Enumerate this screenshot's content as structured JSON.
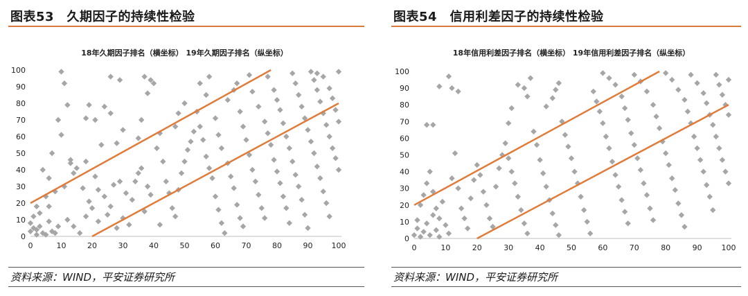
{
  "panels": [
    {
      "figure_title": "图表53　久期因子的持续性检验",
      "source": "资料来源：WIND，平安证券研究所"
    },
    {
      "figure_title": "图表54　信用利差因子的持续性检验",
      "source": "资料来源：WIND，平安证券研究所"
    }
  ],
  "chart_data": [
    {
      "type": "scatter",
      "title": "18年久期因子排名（横坐标）  19年久期因子排名（纵坐标）",
      "xlabel": "",
      "ylabel": "",
      "xlim": [
        0,
        100
      ],
      "ylim": [
        0,
        100
      ],
      "xticks": [
        0,
        10,
        20,
        30,
        40,
        50,
        60,
        70,
        80,
        90,
        100
      ],
      "yticks": [
        0,
        10,
        20,
        30,
        40,
        50,
        60,
        70,
        80,
        90,
        100
      ],
      "grid": false,
      "marker_color": "#a6a6a6",
      "line_color": "#e07b39",
      "reference_lines": [
        {
          "x": [
            0,
            78
          ],
          "y": [
            20,
            100
          ]
        },
        {
          "x": [
            20,
            100
          ],
          "y": [
            0,
            80
          ]
        }
      ],
      "points": [
        [
          0,
          3
        ],
        [
          1,
          5
        ],
        [
          2,
          1
        ],
        [
          0,
          8
        ],
        [
          1,
          12
        ],
        [
          2,
          18
        ],
        [
          3,
          6
        ],
        [
          4,
          2
        ],
        [
          3,
          14
        ],
        [
          5,
          24
        ],
        [
          6,
          9
        ],
        [
          7,
          3
        ],
        [
          5,
          1
        ],
        [
          8,
          2
        ],
        [
          9,
          6
        ],
        [
          4,
          40
        ],
        [
          6,
          35
        ],
        [
          7,
          50
        ],
        [
          9,
          70
        ],
        [
          10,
          99
        ],
        [
          11,
          92
        ],
        [
          12,
          79
        ],
        [
          10,
          61
        ],
        [
          13,
          46
        ],
        [
          14,
          38
        ],
        [
          12,
          10
        ],
        [
          14,
          6
        ],
        [
          16,
          2
        ],
        [
          18,
          12
        ],
        [
          20,
          17
        ],
        [
          2,
          4
        ],
        [
          6,
          18
        ],
        [
          8,
          27
        ],
        [
          11,
          30
        ],
        [
          13,
          44
        ],
        [
          15,
          41
        ],
        [
          17,
          29
        ],
        [
          18,
          45
        ],
        [
          19,
          21
        ],
        [
          21,
          36
        ],
        [
          22,
          28
        ],
        [
          24,
          24
        ],
        [
          25,
          13
        ],
        [
          22,
          9
        ],
        [
          26,
          18
        ],
        [
          28,
          5
        ],
        [
          27,
          31
        ],
        [
          29,
          33
        ],
        [
          30,
          11
        ],
        [
          31,
          26
        ],
        [
          23,
          55
        ],
        [
          21,
          70
        ],
        [
          24,
          78
        ],
        [
          26,
          74
        ],
        [
          19,
          79
        ],
        [
          18,
          71
        ],
        [
          28,
          56
        ],
        [
          30,
          64
        ],
        [
          29,
          94
        ],
        [
          26,
          96
        ],
        [
          32,
          7
        ],
        [
          33,
          22
        ],
        [
          34,
          33
        ],
        [
          35,
          38
        ],
        [
          36,
          41
        ],
        [
          37,
          15
        ],
        [
          38,
          30
        ],
        [
          39,
          25
        ],
        [
          35,
          59
        ],
        [
          36,
          70
        ],
        [
          38,
          86
        ],
        [
          39,
          94
        ],
        [
          40,
          92
        ],
        [
          37,
          96
        ],
        [
          41,
          53
        ],
        [
          42,
          62
        ],
        [
          43,
          45
        ],
        [
          44,
          33
        ],
        [
          45,
          26
        ],
        [
          46,
          17
        ],
        [
          47,
          12
        ],
        [
          42,
          7
        ],
        [
          48,
          28
        ],
        [
          49,
          38
        ],
        [
          50,
          45
        ],
        [
          51,
          52
        ],
        [
          52,
          57
        ],
        [
          47,
          66
        ],
        [
          48,
          74
        ],
        [
          50,
          80
        ],
        [
          53,
          63
        ],
        [
          54,
          75
        ],
        [
          55,
          66
        ],
        [
          56,
          58
        ],
        [
          57,
          48
        ],
        [
          58,
          41
        ],
        [
          59,
          35
        ],
        [
          60,
          24
        ],
        [
          61,
          16
        ],
        [
          62,
          8
        ],
        [
          63,
          2
        ],
        [
          55,
          92
        ],
        [
          57,
          85
        ],
        [
          58,
          96
        ],
        [
          60,
          71
        ],
        [
          61,
          61
        ],
        [
          62,
          53
        ],
        [
          64,
          44
        ],
        [
          65,
          36
        ],
        [
          66,
          29
        ],
        [
          67,
          19
        ],
        [
          68,
          11
        ],
        [
          69,
          6
        ],
        [
          64,
          82
        ],
        [
          66,
          88
        ],
        [
          67,
          92
        ],
        [
          68,
          75
        ],
        [
          69,
          66
        ],
        [
          70,
          58
        ],
        [
          71,
          49
        ],
        [
          72,
          40
        ],
        [
          73,
          33
        ],
        [
          74,
          25
        ],
        [
          75,
          17
        ],
        [
          76,
          11
        ],
        [
          71,
          97
        ],
        [
          72,
          87
        ],
        [
          74,
          78
        ],
        [
          76,
          69
        ],
        [
          77,
          62
        ],
        [
          78,
          55
        ],
        [
          79,
          46
        ],
        [
          80,
          39
        ],
        [
          81,
          32
        ],
        [
          82,
          24
        ],
        [
          83,
          17
        ],
        [
          84,
          8
        ],
        [
          77,
          96
        ],
        [
          79,
          88
        ],
        [
          80,
          82
        ],
        [
          81,
          76
        ],
        [
          82,
          68
        ],
        [
          83,
          60
        ],
        [
          84,
          53
        ],
        [
          85,
          45
        ],
        [
          86,
          37
        ],
        [
          87,
          30
        ],
        [
          88,
          22
        ],
        [
          89,
          13
        ],
        [
          90,
          5
        ],
        [
          85,
          98
        ],
        [
          86,
          92
        ],
        [
          87,
          85
        ],
        [
          88,
          78
        ],
        [
          89,
          71
        ],
        [
          90,
          64
        ],
        [
          91,
          57
        ],
        [
          92,
          50
        ],
        [
          93,
          42
        ],
        [
          94,
          35
        ],
        [
          95,
          27
        ],
        [
          96,
          20
        ],
        [
          97,
          12
        ],
        [
          91,
          99
        ],
        [
          92,
          94
        ],
        [
          93,
          88
        ],
        [
          94,
          81
        ],
        [
          95,
          74
        ],
        [
          96,
          67
        ],
        [
          97,
          60
        ],
        [
          98,
          53
        ],
        [
          99,
          47
        ],
        [
          100,
          40
        ],
        [
          93,
          98
        ],
        [
          95,
          96
        ],
        [
          97,
          89
        ],
        [
          98,
          83
        ],
        [
          99,
          76
        ],
        [
          100,
          69
        ],
        [
          100,
          99
        ]
      ]
    },
    {
      "type": "scatter",
      "title": "18年信用利差因子排名（横坐标）  19年信用利差因子排名（纵坐标）",
      "xlabel": "",
      "ylabel": "",
      "xlim": [
        0,
        100
      ],
      "ylim": [
        0,
        100
      ],
      "xticks": [
        0,
        10,
        20,
        30,
        40,
        50,
        60,
        70,
        80,
        90,
        100
      ],
      "yticks": [
        0,
        10,
        20,
        30,
        40,
        50,
        60,
        70,
        80,
        90,
        100
      ],
      "grid": false,
      "marker_color": "#a6a6a6",
      "line_color": "#e07b39",
      "reference_lines": [
        {
          "x": [
            0,
            78
          ],
          "y": [
            20,
            100
          ]
        },
        {
          "x": [
            20,
            100
          ],
          "y": [
            0,
            80
          ]
        }
      ],
      "points": [
        [
          0,
          2
        ],
        [
          1,
          6
        ],
        [
          2,
          1
        ],
        [
          1,
          11
        ],
        [
          3,
          4
        ],
        [
          4,
          9
        ],
        [
          5,
          2
        ],
        [
          6,
          14
        ],
        [
          7,
          5
        ],
        [
          8,
          1
        ],
        [
          2,
          20
        ],
        [
          3,
          26
        ],
        [
          4,
          33
        ],
        [
          5,
          40
        ],
        [
          6,
          28
        ],
        [
          7,
          18
        ],
        [
          8,
          12
        ],
        [
          9,
          22
        ],
        [
          10,
          8
        ],
        [
          11,
          3
        ],
        [
          4,
          68
        ],
        [
          6,
          68
        ],
        [
          8,
          91
        ],
        [
          11,
          97
        ],
        [
          12,
          90
        ],
        [
          14,
          88
        ],
        [
          13,
          51
        ],
        [
          12,
          36
        ],
        [
          14,
          30
        ],
        [
          15,
          18
        ],
        [
          16,
          12
        ],
        [
          17,
          6
        ],
        [
          18,
          24
        ],
        [
          19,
          35
        ],
        [
          20,
          44
        ],
        [
          21,
          38
        ],
        [
          22,
          28
        ],
        [
          23,
          20
        ],
        [
          24,
          12
        ],
        [
          25,
          7
        ],
        [
          26,
          31
        ],
        [
          27,
          42
        ],
        [
          28,
          50
        ],
        [
          29,
          57
        ],
        [
          30,
          48
        ],
        [
          31,
          40
        ],
        [
          32,
          33
        ],
        [
          33,
          25
        ],
        [
          34,
          17
        ],
        [
          35,
          9
        ],
        [
          36,
          3
        ],
        [
          30,
          69
        ],
        [
          31,
          78
        ],
        [
          33,
          92
        ],
        [
          35,
          90
        ],
        [
          36,
          85
        ],
        [
          37,
          96
        ],
        [
          38,
          64
        ],
        [
          39,
          56
        ],
        [
          40,
          47
        ],
        [
          41,
          39
        ],
        [
          42,
          31
        ],
        [
          43,
          23
        ],
        [
          44,
          15
        ],
        [
          45,
          8
        ],
        [
          46,
          2
        ],
        [
          42,
          79
        ],
        [
          44,
          84
        ],
        [
          45,
          89
        ],
        [
          46,
          93
        ],
        [
          47,
          70
        ],
        [
          48,
          62
        ],
        [
          49,
          55
        ],
        [
          50,
          48
        ],
        [
          51,
          40
        ],
        [
          52,
          33
        ],
        [
          53,
          25
        ],
        [
          54,
          17
        ],
        [
          55,
          10
        ],
        [
          56,
          3
        ],
        [
          57,
          88
        ],
        [
          58,
          82
        ],
        [
          59,
          76
        ],
        [
          60,
          69
        ],
        [
          61,
          61
        ],
        [
          62,
          54
        ],
        [
          63,
          46
        ],
        [
          64,
          38
        ],
        [
          65,
          31
        ],
        [
          66,
          23
        ],
        [
          67,
          16
        ],
        [
          68,
          9
        ],
        [
          60,
          99
        ],
        [
          62,
          96
        ],
        [
          64,
          92
        ],
        [
          66,
          85
        ],
        [
          67,
          78
        ],
        [
          68,
          71
        ],
        [
          69,
          63
        ],
        [
          70,
          56
        ],
        [
          71,
          48
        ],
        [
          72,
          41
        ],
        [
          73,
          33
        ],
        [
          74,
          26
        ],
        [
          75,
          18
        ],
        [
          76,
          11
        ],
        [
          70,
          98
        ],
        [
          72,
          94
        ],
        [
          74,
          88
        ],
        [
          76,
          80
        ],
        [
          77,
          73
        ],
        [
          78,
          66
        ],
        [
          79,
          58
        ],
        [
          80,
          51
        ],
        [
          81,
          44
        ],
        [
          82,
          36
        ],
        [
          83,
          29
        ],
        [
          84,
          21
        ],
        [
          85,
          14
        ],
        [
          86,
          7
        ],
        [
          80,
          99
        ],
        [
          82,
          95
        ],
        [
          84,
          89
        ],
        [
          86,
          83
        ],
        [
          87,
          76
        ],
        [
          88,
          69
        ],
        [
          89,
          61
        ],
        [
          90,
          54
        ],
        [
          91,
          47
        ],
        [
          92,
          40
        ],
        [
          93,
          32
        ],
        [
          94,
          25
        ],
        [
          95,
          17
        ],
        [
          88,
          98
        ],
        [
          90,
          93
        ],
        [
          92,
          87
        ],
        [
          93,
          81
        ],
        [
          94,
          74
        ],
        [
          95,
          68
        ],
        [
          96,
          61
        ],
        [
          97,
          54
        ],
        [
          98,
          47
        ],
        [
          99,
          40
        ],
        [
          100,
          33
        ],
        [
          96,
          98
        ],
        [
          97,
          92
        ],
        [
          98,
          86
        ],
        [
          99,
          80
        ],
        [
          100,
          74
        ],
        [
          100,
          95
        ]
      ]
    }
  ]
}
